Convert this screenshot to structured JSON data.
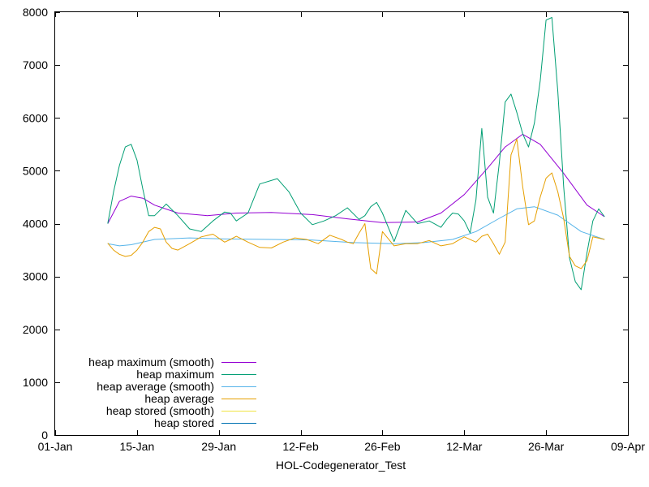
{
  "chart_data": {
    "type": "line",
    "title": "",
    "xlabel": "HOL-Codegenerator_Test",
    "ylabel": "",
    "x_type": "date",
    "xlim": [
      "2021-01-01",
      "2021-04-09"
    ],
    "ylim": [
      0,
      8000
    ],
    "x_ticks": [
      {
        "date": "2021-01-01",
        "label": "01-Jan"
      },
      {
        "date": "2021-01-15",
        "label": "15-Jan"
      },
      {
        "date": "2021-01-29",
        "label": "29-Jan"
      },
      {
        "date": "2021-02-12",
        "label": "12-Feb"
      },
      {
        "date": "2021-02-26",
        "label": "26-Feb"
      },
      {
        "date": "2021-03-12",
        "label": "12-Mar"
      },
      {
        "date": "2021-03-26",
        "label": "26-Mar"
      },
      {
        "date": "2021-04-09",
        "label": "09-Apr"
      }
    ],
    "y_ticks": [
      0,
      1000,
      2000,
      3000,
      4000,
      5000,
      6000,
      7000,
      8000
    ],
    "grid": false,
    "legend_position": "bottom-left",
    "series": [
      {
        "name": "heap maximum (smooth)",
        "color": "#9400d3",
        "x": [
          "2021-01-10",
          "2021-01-12",
          "2021-01-14",
          "2021-01-16",
          "2021-01-18",
          "2021-01-22",
          "2021-01-27",
          "2021-02-01",
          "2021-02-07",
          "2021-02-14",
          "2021-02-20",
          "2021-02-26",
          "2021-03-04",
          "2021-03-08",
          "2021-03-12",
          "2021-03-16",
          "2021-03-19",
          "2021-03-22",
          "2021-03-25",
          "2021-03-29",
          "2021-04-02",
          "2021-04-05"
        ],
        "y": [
          4000,
          4420,
          4520,
          4480,
          4350,
          4200,
          4150,
          4200,
          4210,
          4170,
          4090,
          4020,
          4030,
          4200,
          4550,
          5050,
          5450,
          5690,
          5500,
          4950,
          4350,
          4130
        ]
      },
      {
        "name": "heap maximum",
        "color": "#009e73",
        "x": [
          "2021-01-10",
          "2021-01-11",
          "2021-01-12",
          "2021-01-13",
          "2021-01-14",
          "2021-01-15",
          "2021-01-16",
          "2021-01-17",
          "2021-01-18",
          "2021-01-20",
          "2021-01-22",
          "2021-01-24",
          "2021-01-26",
          "2021-01-28",
          "2021-01-30",
          "2021-01-31",
          "2021-02-01",
          "2021-02-03",
          "2021-02-05",
          "2021-02-08",
          "2021-02-10",
          "2021-02-12",
          "2021-02-14",
          "2021-02-16",
          "2021-02-18",
          "2021-02-20",
          "2021-02-22",
          "2021-02-23",
          "2021-02-24",
          "2021-02-25",
          "2021-02-26",
          "2021-02-28",
          "2021-03-02",
          "2021-03-04",
          "2021-03-06",
          "2021-03-08",
          "2021-03-09",
          "2021-03-10",
          "2021-03-11",
          "2021-03-12",
          "2021-03-13",
          "2021-03-14",
          "2021-03-15",
          "2021-03-16",
          "2021-03-17",
          "2021-03-18",
          "2021-03-19",
          "2021-03-20",
          "2021-03-21",
          "2021-03-22",
          "2021-03-23",
          "2021-03-24",
          "2021-03-25",
          "2021-03-26",
          "2021-03-27",
          "2021-03-28",
          "2021-03-29",
          "2021-03-30",
          "2021-03-31",
          "2021-04-01",
          "2021-04-02",
          "2021-04-03",
          "2021-04-04",
          "2021-04-05"
        ],
        "y": [
          4000,
          4600,
          5100,
          5450,
          5500,
          5200,
          4650,
          4150,
          4150,
          4370,
          4150,
          3900,
          3850,
          4050,
          4220,
          4200,
          4050,
          4200,
          4750,
          4850,
          4600,
          4200,
          3980,
          4050,
          4150,
          4300,
          4080,
          4150,
          4320,
          4400,
          4200,
          3660,
          4250,
          4000,
          4050,
          3930,
          4080,
          4200,
          4180,
          4050,
          3820,
          4450,
          5800,
          4500,
          4200,
          5150,
          6300,
          6450,
          6100,
          5700,
          5450,
          5900,
          6700,
          7850,
          7900,
          6500,
          4700,
          3350,
          2900,
          2750,
          3450,
          4050,
          4280,
          4130
        ]
      },
      {
        "name": "heap average (smooth)",
        "color": "#56b4e9",
        "x": [
          "2021-01-10",
          "2021-01-12",
          "2021-01-14",
          "2021-01-18",
          "2021-01-24",
          "2021-01-30",
          "2021-02-07",
          "2021-02-14",
          "2021-02-21",
          "2021-02-28",
          "2021-03-05",
          "2021-03-10",
          "2021-03-14",
          "2021-03-18",
          "2021-03-21",
          "2021-03-24",
          "2021-03-28",
          "2021-04-01",
          "2021-04-05"
        ],
        "y": [
          3620,
          3580,
          3600,
          3700,
          3730,
          3710,
          3700,
          3690,
          3640,
          3620,
          3640,
          3700,
          3850,
          4100,
          4280,
          4320,
          4160,
          3850,
          3700
        ]
      },
      {
        "name": "heap average",
        "color": "#e69f00",
        "x": [
          "2021-01-10",
          "2021-01-11",
          "2021-01-12",
          "2021-01-13",
          "2021-01-14",
          "2021-01-15",
          "2021-01-16",
          "2021-01-17",
          "2021-01-18",
          "2021-01-19",
          "2021-01-20",
          "2021-01-21",
          "2021-01-22",
          "2021-01-24",
          "2021-01-26",
          "2021-01-28",
          "2021-01-30",
          "2021-01-31",
          "2021-02-01",
          "2021-02-03",
          "2021-02-05",
          "2021-02-07",
          "2021-02-09",
          "2021-02-11",
          "2021-02-13",
          "2021-02-15",
          "2021-02-17",
          "2021-02-19",
          "2021-02-20",
          "2021-02-21",
          "2021-02-22",
          "2021-02-23",
          "2021-02-24",
          "2021-02-25",
          "2021-02-26",
          "2021-02-28",
          "2021-03-02",
          "2021-03-04",
          "2021-03-06",
          "2021-03-08",
          "2021-03-10",
          "2021-03-12",
          "2021-03-14",
          "2021-03-15",
          "2021-03-16",
          "2021-03-17",
          "2021-03-18",
          "2021-03-19",
          "2021-03-20",
          "2021-03-21",
          "2021-03-22",
          "2021-03-23",
          "2021-03-24",
          "2021-03-25",
          "2021-03-26",
          "2021-03-27",
          "2021-03-28",
          "2021-03-29",
          "2021-03-30",
          "2021-03-31",
          "2021-04-01",
          "2021-04-02",
          "2021-04-03",
          "2021-04-05"
        ],
        "y": [
          3630,
          3500,
          3420,
          3380,
          3400,
          3500,
          3650,
          3850,
          3930,
          3900,
          3650,
          3530,
          3500,
          3620,
          3750,
          3800,
          3650,
          3700,
          3760,
          3650,
          3550,
          3540,
          3650,
          3730,
          3700,
          3620,
          3780,
          3700,
          3650,
          3620,
          3820,
          4000,
          3150,
          3050,
          3850,
          3580,
          3620,
          3620,
          3680,
          3580,
          3620,
          3750,
          3650,
          3760,
          3800,
          3620,
          3420,
          3650,
          5300,
          5600,
          4700,
          3980,
          4050,
          4500,
          4860,
          4960,
          4600,
          4100,
          3380,
          3200,
          3150,
          3300,
          3750,
          3700
        ]
      },
      {
        "name": "heap stored (smooth)",
        "color": "#f0e442",
        "x": [],
        "y": []
      },
      {
        "name": "heap stored",
        "color": "#0072b2",
        "x": [],
        "y": []
      }
    ]
  }
}
